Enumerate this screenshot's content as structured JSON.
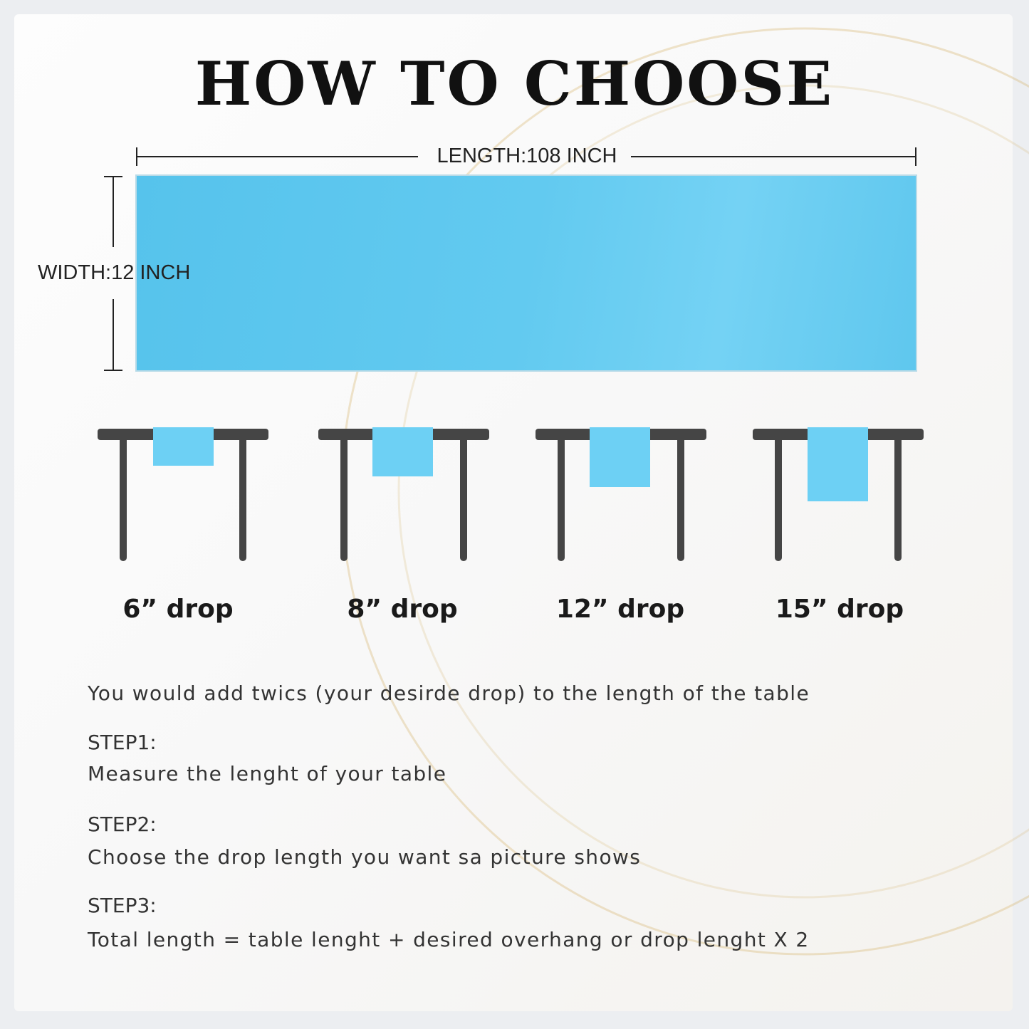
{
  "title": "HOW TO CHOOSE",
  "dimensions": {
    "length_label": "LENGTH:108 INCH",
    "width_label": "WIDTH:12 INCH"
  },
  "colors": {
    "runner": "#5ec8ef",
    "table": "#454545"
  },
  "drops": [
    {
      "label": "6” drop",
      "inches": 6
    },
    {
      "label": "8” drop",
      "inches": 8
    },
    {
      "label": "12” drop",
      "inches": 12
    },
    {
      "label": "15” drop",
      "inches": 15
    }
  ],
  "instructions": {
    "intro": "You would add twics (your desirde drop) to the length of the table",
    "step1_title": "STEP1:",
    "step1_text": "Measure the lenght of your table",
    "step2_title": "STEP2:",
    "step2_text": "Choose the drop length you want sa picture shows",
    "step3_title": "STEP3:",
    "step3_text": "Total length = table lenght + desired overhang or drop lenght X 2"
  }
}
